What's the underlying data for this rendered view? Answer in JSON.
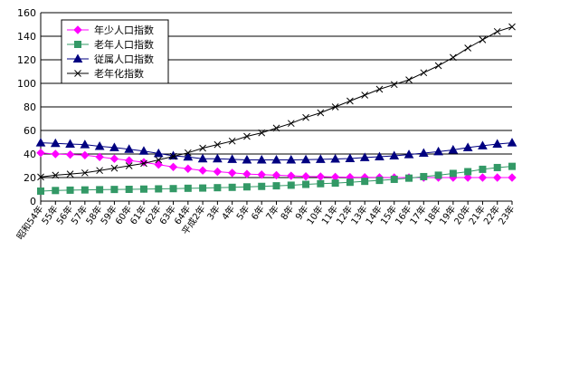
{
  "chart_data": {
    "type": "line",
    "x": [
      "昭和54年",
      "55年",
      "56年",
      "57年",
      "58年",
      "59年",
      "60年",
      "61年",
      "62年",
      "63年",
      "64年",
      "平成2年",
      "3年",
      "4年",
      "5年",
      "6年",
      "7年",
      "8年",
      "9年",
      "10年",
      "11年",
      "12年",
      "13年",
      "14年",
      "15年",
      "16年",
      "17年",
      "18年",
      "19年",
      "20年",
      "21年",
      "22年",
      "23年"
    ],
    "ylim": [
      0,
      160
    ],
    "yticks": [
      0,
      20,
      40,
      60,
      80,
      100,
      120,
      140,
      160
    ],
    "grid": "horizontal",
    "legend_position": "top-left",
    "series": [
      {
        "name": "年少人口指数",
        "color": "#ff00ff",
        "marker": "diamond",
        "values": [
          41,
          40,
          39.5,
          39,
          37.5,
          36,
          34.5,
          33,
          31,
          29,
          27.5,
          26,
          25,
          24,
          23,
          22.5,
          22,
          21.5,
          21,
          20.8,
          20.5,
          20.3,
          20.2,
          20.1,
          20,
          20,
          20,
          20,
          20,
          20,
          20,
          20,
          20
        ]
      },
      {
        "name": "老年人口指数",
        "color": "#339966",
        "marker": "square",
        "values": [
          8.5,
          9,
          9.3,
          9.5,
          9.7,
          9.9,
          10,
          10.2,
          10.4,
          10.6,
          10.9,
          11.1,
          11.4,
          11.7,
          12.1,
          12.5,
          13,
          13.5,
          14.2,
          14.8,
          15.3,
          16,
          16.8,
          17.6,
          18.5,
          19.5,
          20.8,
          22,
          23.5,
          25,
          27,
          28.5,
          29.5
        ]
      },
      {
        "name": "従属人口指数",
        "color": "#000080",
        "marker": "triangle",
        "values": [
          49.5,
          49,
          48.5,
          48,
          46.5,
          45.5,
          44,
          42.5,
          40.5,
          38.5,
          37.5,
          36,
          36,
          35.5,
          35,
          35,
          35,
          35,
          35.2,
          35.5,
          35.8,
          36.2,
          37,
          37.7,
          38.5,
          39.5,
          40.8,
          42,
          43.5,
          45.5,
          47,
          48.5,
          49.5
        ]
      },
      {
        "name": "老年化指数",
        "color": "#000000",
        "marker": "x",
        "values": [
          20.5,
          22,
          23,
          24,
          26,
          28,
          30,
          32,
          35,
          38,
          41,
          45,
          48,
          51,
          55,
          58,
          62,
          66,
          71,
          75,
          80,
          85,
          90,
          95,
          99,
          103,
          109,
          115,
          122,
          130,
          137,
          144,
          148
        ]
      }
    ]
  }
}
